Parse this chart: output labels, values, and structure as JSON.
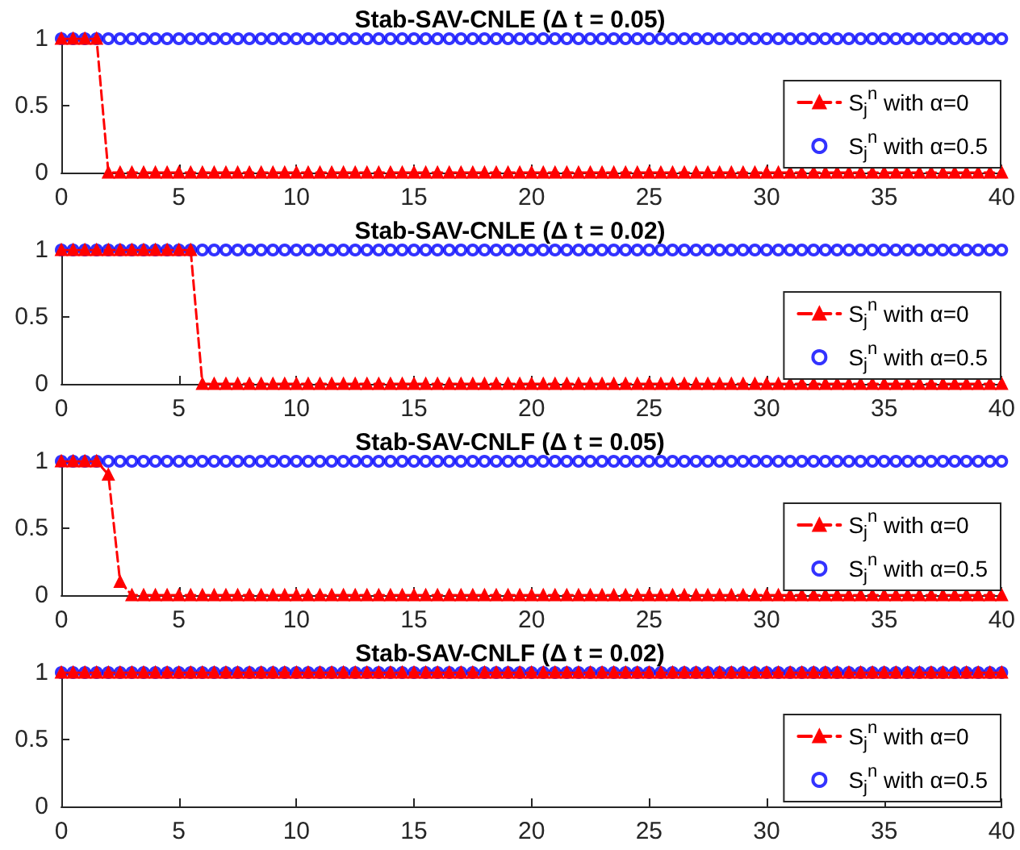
{
  "chart_data": [
    {
      "type": "line",
      "title": "Stab-SAV-CNLE (Δ t = 0.05)",
      "x": [
        0,
        0.5,
        1,
        1.5,
        2,
        2.5,
        3,
        3.5,
        4,
        4.5,
        5,
        5.5,
        6,
        6.5,
        7,
        7.5,
        8,
        8.5,
        9,
        9.5,
        10,
        10.5,
        11,
        11.5,
        12,
        12.5,
        13,
        13.5,
        14,
        14.5,
        15,
        15.5,
        16,
        16.5,
        17,
        17.5,
        18,
        18.5,
        19,
        19.5,
        20,
        20.5,
        21,
        21.5,
        22,
        22.5,
        23,
        23.5,
        24,
        24.5,
        25,
        25.5,
        26,
        26.5,
        27,
        27.5,
        28,
        28.5,
        29,
        29.5,
        30,
        30.5,
        31,
        31.5,
        32,
        32.5,
        33,
        33.5,
        34,
        34.5,
        35,
        35.5,
        36,
        36.5,
        37,
        37.5,
        38,
        38.5,
        39,
        39.5,
        40
      ],
      "xlim": [
        0,
        40
      ],
      "xticks": [
        0,
        5,
        10,
        15,
        20,
        25,
        30,
        35,
        40
      ],
      "ylim": [
        0,
        1
      ],
      "yticks": [
        0,
        0.5,
        1
      ],
      "legend": "right",
      "series": [
        {
          "name": "S$_{j}$$^{n}$ with α=0",
          "color": "#ff0000",
          "marker": "triangle",
          "line_style": "dashed",
          "values": [
            1,
            1,
            1,
            1,
            0,
            0,
            0,
            0,
            0,
            0,
            0,
            0,
            0,
            0,
            0,
            0,
            0,
            0,
            0,
            0,
            0,
            0,
            0,
            0,
            0,
            0,
            0,
            0,
            0,
            0,
            0,
            0,
            0,
            0,
            0,
            0,
            0,
            0,
            0,
            0,
            0,
            0,
            0,
            0,
            0,
            0,
            0,
            0,
            0,
            0,
            0,
            0,
            0,
            0,
            0,
            0,
            0,
            0,
            0,
            0,
            0,
            0,
            0,
            0,
            0,
            0,
            0,
            0,
            0,
            0,
            0,
            0,
            0,
            0,
            0,
            0,
            0,
            0,
            0,
            0,
            0
          ]
        },
        {
          "name": "S$_{j}$$^{n}$ with α=0.5",
          "type": "scatter",
          "color": "#0000ff",
          "marker": "circle",
          "values": [
            1,
            1,
            1,
            1,
            1,
            1,
            1,
            1,
            1,
            1,
            1,
            1,
            1,
            1,
            1,
            1,
            1,
            1,
            1,
            1,
            1,
            1,
            1,
            1,
            1,
            1,
            1,
            1,
            1,
            1,
            1,
            1,
            1,
            1,
            1,
            1,
            1,
            1,
            1,
            1,
            1,
            1,
            1,
            1,
            1,
            1,
            1,
            1,
            1,
            1,
            1,
            1,
            1,
            1,
            1,
            1,
            1,
            1,
            1,
            1,
            1,
            1,
            1,
            1,
            1,
            1,
            1,
            1,
            1,
            1,
            1,
            1,
            1,
            1,
            1,
            1,
            1,
            1,
            1,
            1,
            1
          ]
        }
      ]
    },
    {
      "type": "line",
      "title": "Stab-SAV-CNLE (Δ t = 0.02)",
      "x": [
        0,
        0.5,
        1,
        1.5,
        2,
        2.5,
        3,
        3.5,
        4,
        4.5,
        5,
        5.5,
        6,
        6.5,
        7,
        7.5,
        8,
        8.5,
        9,
        9.5,
        10,
        10.5,
        11,
        11.5,
        12,
        12.5,
        13,
        13.5,
        14,
        14.5,
        15,
        15.5,
        16,
        16.5,
        17,
        17.5,
        18,
        18.5,
        19,
        19.5,
        20,
        20.5,
        21,
        21.5,
        22,
        22.5,
        23,
        23.5,
        24,
        24.5,
        25,
        25.5,
        26,
        26.5,
        27,
        27.5,
        28,
        28.5,
        29,
        29.5,
        30,
        30.5,
        31,
        31.5,
        32,
        32.5,
        33,
        33.5,
        34,
        34.5,
        35,
        35.5,
        36,
        36.5,
        37,
        37.5,
        38,
        38.5,
        39,
        39.5,
        40
      ],
      "xlim": [
        0,
        40
      ],
      "xticks": [
        0,
        5,
        10,
        15,
        20,
        25,
        30,
        35,
        40
      ],
      "ylim": [
        0,
        1
      ],
      "yticks": [
        0,
        0.5,
        1
      ],
      "legend": "right",
      "series": [
        {
          "name": "S$_{j}$$^{n}$ with α=0",
          "color": "#ff0000",
          "marker": "triangle",
          "line_style": "dashed",
          "values": [
            1,
            1,
            1,
            1,
            1,
            1,
            1,
            1,
            1,
            1,
            1,
            1,
            0,
            0,
            0,
            0,
            0,
            0,
            0,
            0,
            0,
            0,
            0,
            0,
            0,
            0,
            0,
            0,
            0,
            0,
            0,
            0,
            0,
            0,
            0,
            0,
            0,
            0,
            0,
            0,
            0,
            0,
            0,
            0,
            0,
            0,
            0,
            0,
            0,
            0,
            0,
            0,
            0,
            0,
            0,
            0,
            0,
            0,
            0,
            0,
            0,
            0,
            0,
            0,
            0,
            0,
            0,
            0,
            0,
            0,
            0,
            0,
            0,
            0,
            0,
            0,
            0,
            0,
            0,
            0,
            0
          ]
        },
        {
          "name": "S$_{j}$$^{n}$ with α=0.5",
          "type": "scatter",
          "color": "#0000ff",
          "marker": "circle",
          "values": [
            1,
            1,
            1,
            1,
            1,
            1,
            1,
            1,
            1,
            1,
            1,
            1,
            1,
            1,
            1,
            1,
            1,
            1,
            1,
            1,
            1,
            1,
            1,
            1,
            1,
            1,
            1,
            1,
            1,
            1,
            1,
            1,
            1,
            1,
            1,
            1,
            1,
            1,
            1,
            1,
            1,
            1,
            1,
            1,
            1,
            1,
            1,
            1,
            1,
            1,
            1,
            1,
            1,
            1,
            1,
            1,
            1,
            1,
            1,
            1,
            1,
            1,
            1,
            1,
            1,
            1,
            1,
            1,
            1,
            1,
            1,
            1,
            1,
            1,
            1,
            1,
            1,
            1,
            1,
            1,
            1
          ]
        }
      ]
    },
    {
      "type": "line",
      "title": "Stab-SAV-CNLF (Δ t = 0.05)",
      "x": [
        0,
        0.5,
        1,
        1.5,
        2,
        2.5,
        3,
        3.5,
        4,
        4.5,
        5,
        5.5,
        6,
        6.5,
        7,
        7.5,
        8,
        8.5,
        9,
        9.5,
        10,
        10.5,
        11,
        11.5,
        12,
        12.5,
        13,
        13.5,
        14,
        14.5,
        15,
        15.5,
        16,
        16.5,
        17,
        17.5,
        18,
        18.5,
        19,
        19.5,
        20,
        20.5,
        21,
        21.5,
        22,
        22.5,
        23,
        23.5,
        24,
        24.5,
        25,
        25.5,
        26,
        26.5,
        27,
        27.5,
        28,
        28.5,
        29,
        29.5,
        30,
        30.5,
        31,
        31.5,
        32,
        32.5,
        33,
        33.5,
        34,
        34.5,
        35,
        35.5,
        36,
        36.5,
        37,
        37.5,
        38,
        38.5,
        39,
        39.5,
        40
      ],
      "xlim": [
        0,
        40
      ],
      "xticks": [
        0,
        5,
        10,
        15,
        20,
        25,
        30,
        35,
        40
      ],
      "ylim": [
        0,
        1
      ],
      "yticks": [
        0,
        0.5,
        1
      ],
      "legend": "right",
      "series": [
        {
          "name": "S$_{j}$$^{n}$ with α=0",
          "color": "#ff0000",
          "marker": "triangle",
          "line_style": "dashed",
          "values": [
            1,
            1,
            1,
            1,
            0.9,
            0.1,
            0,
            0,
            0,
            0,
            0,
            0,
            0,
            0,
            0,
            0,
            0,
            0,
            0,
            0,
            0,
            0,
            0,
            0,
            0,
            0,
            0,
            0,
            0,
            0,
            0,
            0,
            0,
            0,
            0,
            0,
            0,
            0,
            0,
            0,
            0,
            0,
            0,
            0,
            0,
            0,
            0,
            0,
            0,
            0,
            0,
            0,
            0,
            0,
            0,
            0,
            0,
            0,
            0,
            0,
            0,
            0,
            0,
            0,
            0,
            0,
            0,
            0,
            0,
            0,
            0,
            0,
            0,
            0,
            0,
            0,
            0,
            0,
            0,
            0,
            0
          ]
        },
        {
          "name": "S$_{j}$$^{n}$ with α=0.5",
          "type": "scatter",
          "color": "#0000ff",
          "marker": "circle",
          "values": [
            1,
            1,
            1,
            1,
            1,
            1,
            1,
            1,
            1,
            1,
            1,
            1,
            1,
            1,
            1,
            1,
            1,
            1,
            1,
            1,
            1,
            1,
            1,
            1,
            1,
            1,
            1,
            1,
            1,
            1,
            1,
            1,
            1,
            1,
            1,
            1,
            1,
            1,
            1,
            1,
            1,
            1,
            1,
            1,
            1,
            1,
            1,
            1,
            1,
            1,
            1,
            1,
            1,
            1,
            1,
            1,
            1,
            1,
            1,
            1,
            1,
            1,
            1,
            1,
            1,
            1,
            1,
            1,
            1,
            1,
            1,
            1,
            1,
            1,
            1,
            1,
            1,
            1,
            1,
            1,
            1
          ]
        }
      ]
    },
    {
      "type": "line",
      "title": "Stab-SAV-CNLF (Δ t = 0.02)",
      "x": [
        0,
        0.5,
        1,
        1.5,
        2,
        2.5,
        3,
        3.5,
        4,
        4.5,
        5,
        5.5,
        6,
        6.5,
        7,
        7.5,
        8,
        8.5,
        9,
        9.5,
        10,
        10.5,
        11,
        11.5,
        12,
        12.5,
        13,
        13.5,
        14,
        14.5,
        15,
        15.5,
        16,
        16.5,
        17,
        17.5,
        18,
        18.5,
        19,
        19.5,
        20,
        20.5,
        21,
        21.5,
        22,
        22.5,
        23,
        23.5,
        24,
        24.5,
        25,
        25.5,
        26,
        26.5,
        27,
        27.5,
        28,
        28.5,
        29,
        29.5,
        30,
        30.5,
        31,
        31.5,
        32,
        32.5,
        33,
        33.5,
        34,
        34.5,
        35,
        35.5,
        36,
        36.5,
        37,
        37.5,
        38,
        38.5,
        39,
        39.5,
        40
      ],
      "xlim": [
        0,
        40
      ],
      "xticks": [
        0,
        5,
        10,
        15,
        20,
        25,
        30,
        35,
        40
      ],
      "ylim": [
        0,
        1
      ],
      "yticks": [
        0,
        0.5,
        1
      ],
      "legend": "right",
      "series": [
        {
          "name": "S$_{j}$$^{n}$ with α=0",
          "color": "#ff0000",
          "marker": "triangle",
          "line_style": "dashed",
          "values": [
            1,
            1,
            1,
            1,
            1,
            1,
            1,
            1,
            1,
            1,
            1,
            1,
            1,
            1,
            1,
            1,
            1,
            1,
            1,
            1,
            1,
            1,
            1,
            1,
            1,
            1,
            1,
            1,
            1,
            1,
            1,
            1,
            1,
            1,
            1,
            1,
            1,
            1,
            1,
            1,
            1,
            1,
            1,
            1,
            1,
            1,
            1,
            1,
            1,
            1,
            1,
            1,
            1,
            1,
            1,
            1,
            1,
            1,
            1,
            1,
            1,
            1,
            1,
            1,
            1,
            1,
            1,
            1,
            1,
            1,
            1,
            1,
            1,
            1,
            1,
            1,
            1,
            1,
            1,
            1,
            1
          ]
        },
        {
          "name": "S$_{j}$$^{n}$ with α=0.5",
          "type": "scatter",
          "color": "#0000ff",
          "marker": "circle",
          "values": [
            1,
            1,
            1,
            1,
            1,
            1,
            1,
            1,
            1,
            1,
            1,
            1,
            1,
            1,
            1,
            1,
            1,
            1,
            1,
            1,
            1,
            1,
            1,
            1,
            1,
            1,
            1,
            1,
            1,
            1,
            1,
            1,
            1,
            1,
            1,
            1,
            1,
            1,
            1,
            1,
            1,
            1,
            1,
            1,
            1,
            1,
            1,
            1,
            1,
            1,
            1,
            1,
            1,
            1,
            1,
            1,
            1,
            1,
            1,
            1,
            1,
            1,
            1,
            1,
            1,
            1,
            1,
            1,
            1,
            1,
            1,
            1,
            1,
            1,
            1,
            1,
            1,
            1,
            1,
            1,
            1
          ]
        }
      ]
    }
  ]
}
